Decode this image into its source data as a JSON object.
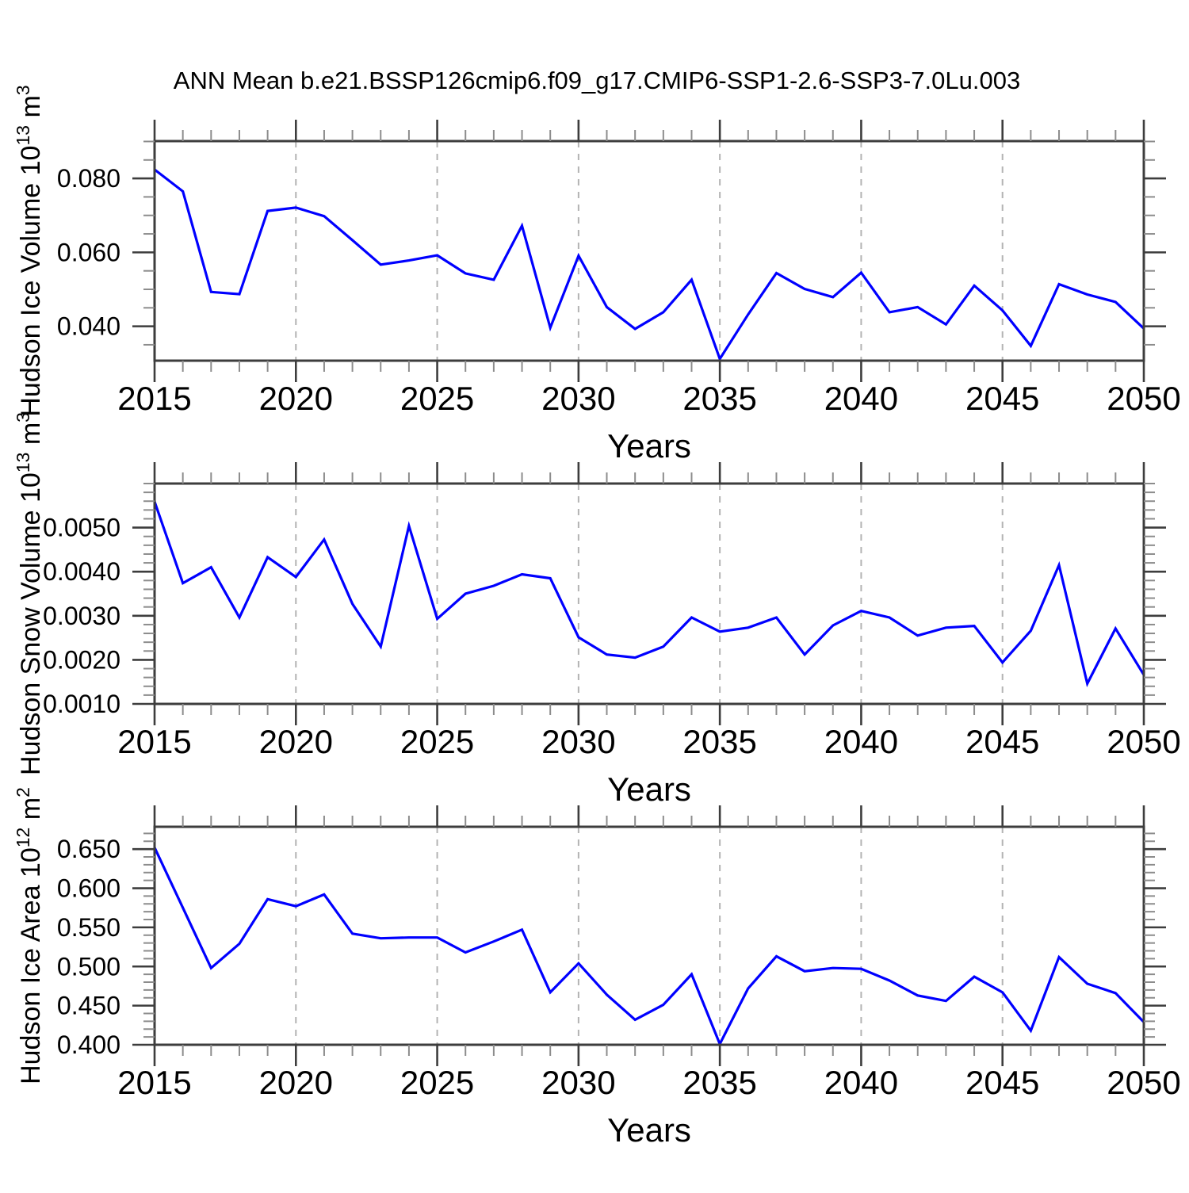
{
  "title": "ANN Mean b.e21.BSSP126cmip6.f09_g17.CMIP6-SSP1-2.6-SSP3-7.0Lu.003",
  "figure": {
    "background": "#ffffff",
    "line_color": "#0000ff",
    "frame_color": "#3d3d3d",
    "major_tick_color": "#3d3d3d",
    "minor_tick_color": "#8c8c8c",
    "grid_color": "#b3b3b3",
    "text_color": "#000000"
  },
  "x_axis": {
    "label": "Years",
    "start": 2015,
    "end": 2050,
    "major_ticks": [
      2015,
      2020,
      2025,
      2030,
      2035,
      2040,
      2045,
      2050
    ],
    "major_tick_labels": [
      "2015",
      "2020",
      "2025",
      "2030",
      "2035",
      "2040",
      "2045",
      "2050"
    ],
    "minor_step": 1,
    "grid_years": [
      2020,
      2025,
      2030,
      2035,
      2040,
      2045
    ]
  },
  "chart_data": [
    {
      "type": "line",
      "name": "hudson-ice-volume",
      "ylabel": {
        "text": "Hudson Ice Volume 10",
        "exp": "13",
        "unit": " m",
        "unit_exp": "3"
      },
      "xlabel": "Years",
      "ylim": [
        0.0307,
        0.0901
      ],
      "ytick_values": [
        0.04,
        0.06,
        0.08
      ],
      "ytick_labels": [
        "0.040",
        "0.060",
        "0.080"
      ],
      "y_minor_step": 0.005,
      "x": [
        2015,
        2016,
        2017,
        2018,
        2019,
        2020,
        2021,
        2022,
        2023,
        2024,
        2025,
        2026,
        2027,
        2028,
        2029,
        2030,
        2031,
        2032,
        2033,
        2034,
        2035,
        2036,
        2037,
        2038,
        2039,
        2040,
        2041,
        2042,
        2043,
        2044,
        2045,
        2046,
        2047,
        2048,
        2049,
        2050
      ],
      "values": [
        0.0824,
        0.0765,
        0.0493,
        0.0487,
        0.0712,
        0.0721,
        0.0698,
        0.0633,
        0.0567,
        0.0578,
        0.0592,
        0.0543,
        0.0526,
        0.0672,
        0.0396,
        0.0591,
        0.0452,
        0.0393,
        0.0438,
        0.0526,
        0.0312,
        0.0432,
        0.0544,
        0.0501,
        0.0479,
        0.0545,
        0.0438,
        0.0452,
        0.0405,
        0.051,
        0.0443,
        0.0347,
        0.0514,
        0.0486,
        0.0466,
        0.0394
      ]
    },
    {
      "type": "line",
      "name": "hudson-snow-volume",
      "ylabel": {
        "text": "Hudson Snow Volume 10",
        "exp": "13",
        "unit": " m",
        "unit_exp": "3"
      },
      "xlabel": "Years",
      "ylim": [
        0.001,
        0.006
      ],
      "ytick_values": [
        0.001,
        0.002,
        0.003,
        0.004,
        0.005
      ],
      "ytick_labels": [
        "0.0010",
        "0.0020",
        "0.0030",
        "0.0040",
        "0.0050"
      ],
      "y_minor_step": 0.0002,
      "x": [
        2015,
        2016,
        2017,
        2018,
        2019,
        2020,
        2021,
        2022,
        2023,
        2024,
        2025,
        2026,
        2027,
        2028,
        2029,
        2030,
        2031,
        2032,
        2033,
        2034,
        2035,
        2036,
        2037,
        2038,
        2039,
        2040,
        2041,
        2042,
        2043,
        2044,
        2045,
        2046,
        2047,
        2048,
        2049,
        2050
      ],
      "values": [
        0.00559,
        0.00374,
        0.0041,
        0.00296,
        0.00433,
        0.00388,
        0.00473,
        0.00327,
        0.0023,
        0.00504,
        0.00293,
        0.0035,
        0.00368,
        0.00394,
        0.00385,
        0.00251,
        0.00212,
        0.00205,
        0.0023,
        0.00296,
        0.00264,
        0.00273,
        0.00296,
        0.00212,
        0.00278,
        0.00311,
        0.00296,
        0.00255,
        0.00273,
        0.00277,
        0.00194,
        0.00266,
        0.00415,
        0.00146,
        0.00271,
        0.00166
      ]
    },
    {
      "type": "line",
      "name": "hudson-ice-area",
      "ylabel": {
        "text": "Hudson Ice Area 10",
        "exp": "12",
        "unit": " m",
        "unit_exp": "2"
      },
      "xlabel": "Years",
      "ylim": [
        0.4,
        0.6785
      ],
      "ytick_values": [
        0.4,
        0.45,
        0.5,
        0.55,
        0.6,
        0.65
      ],
      "ytick_labels": [
        "0.400",
        "0.450",
        "0.500",
        "0.550",
        "0.600",
        "0.650"
      ],
      "y_minor_step": 0.01,
      "x": [
        2015,
        2016,
        2017,
        2018,
        2019,
        2020,
        2021,
        2022,
        2023,
        2024,
        2025,
        2026,
        2027,
        2028,
        2029,
        2030,
        2031,
        2032,
        2033,
        2034,
        2035,
        2036,
        2037,
        2038,
        2039,
        2040,
        2041,
        2042,
        2043,
        2044,
        2045,
        2046,
        2047,
        2048,
        2049,
        2050
      ],
      "values": [
        0.652,
        0.575,
        0.498,
        0.529,
        0.586,
        0.577,
        0.592,
        0.542,
        0.536,
        0.537,
        0.537,
        0.518,
        0.532,
        0.547,
        0.467,
        0.504,
        0.464,
        0.432,
        0.451,
        0.49,
        0.401,
        0.472,
        0.513,
        0.494,
        0.498,
        0.497,
        0.482,
        0.463,
        0.456,
        0.487,
        0.467,
        0.418,
        0.512,
        0.478,
        0.466,
        0.429
      ]
    }
  ]
}
